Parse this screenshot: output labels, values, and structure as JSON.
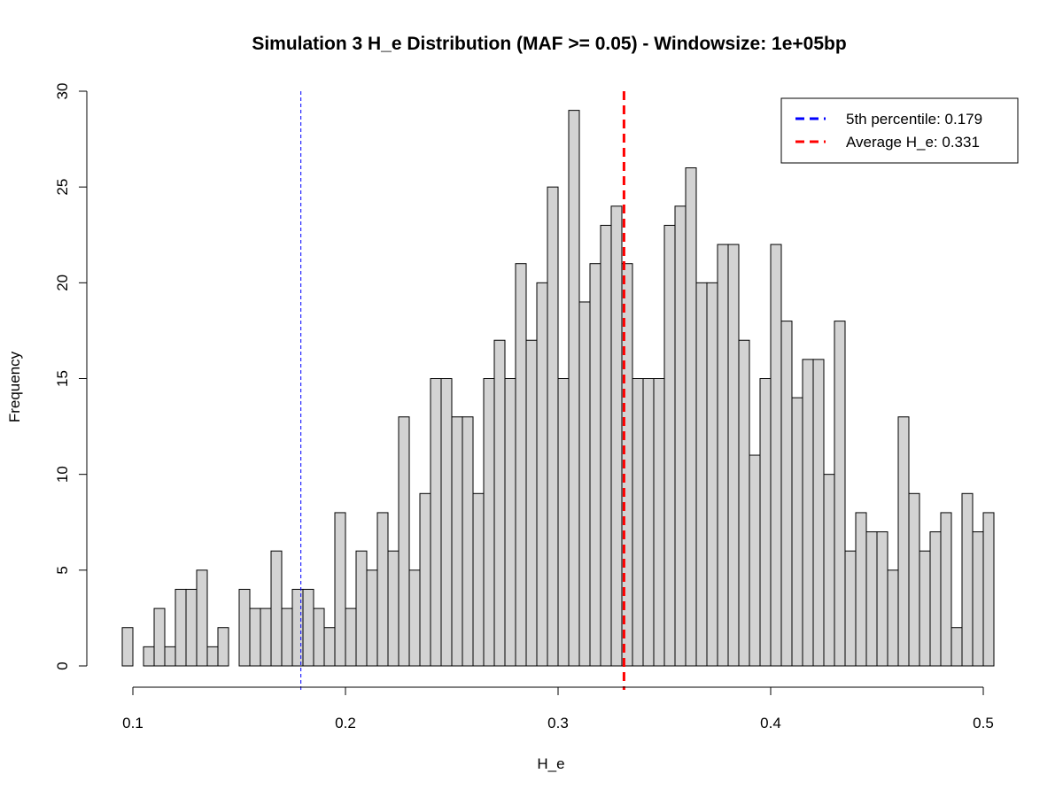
{
  "chart_data": {
    "type": "bar",
    "title": "Simulation 3 H_e Distribution (MAF >= 0.05) - Windowsize: 1e+05bp",
    "xlabel": "H_e",
    "ylabel": "Frequency",
    "bin_width": 0.005,
    "bin_start": 0.095,
    "values": [
      2,
      0,
      1,
      3,
      1,
      4,
      4,
      5,
      1,
      2,
      0,
      4,
      3,
      3,
      6,
      3,
      4,
      4,
      3,
      2,
      8,
      3,
      6,
      5,
      8,
      6,
      13,
      5,
      9,
      15,
      15,
      13,
      13,
      9,
      15,
      17,
      15,
      21,
      17,
      20,
      25,
      15,
      29,
      19,
      21,
      23,
      24,
      21,
      15,
      15,
      15,
      23,
      24,
      26,
      20,
      20,
      22,
      22,
      17,
      11,
      15,
      22,
      18,
      14,
      16,
      16,
      10,
      18,
      6,
      8,
      7,
      7,
      5,
      13,
      9,
      6,
      7,
      8,
      2,
      9,
      7,
      8
    ],
    "xlim": [
      0.1,
      0.5
    ],
    "ylim": [
      0,
      30
    ],
    "x_ticks": [
      "0.1",
      "0.2",
      "0.3",
      "0.4",
      "0.5"
    ],
    "y_ticks": [
      "0",
      "5",
      "10",
      "15",
      "20",
      "25",
      "30"
    ],
    "bar_color": "#d3d3d3",
    "grid": false,
    "legend_position": "top-right",
    "reference_lines": [
      {
        "label": "5th percentile:  0.179",
        "x": 0.179,
        "color": "#0000ff"
      },
      {
        "label": "Average H_e:  0.331",
        "x": 0.331,
        "color": "#ff0000"
      }
    ]
  }
}
